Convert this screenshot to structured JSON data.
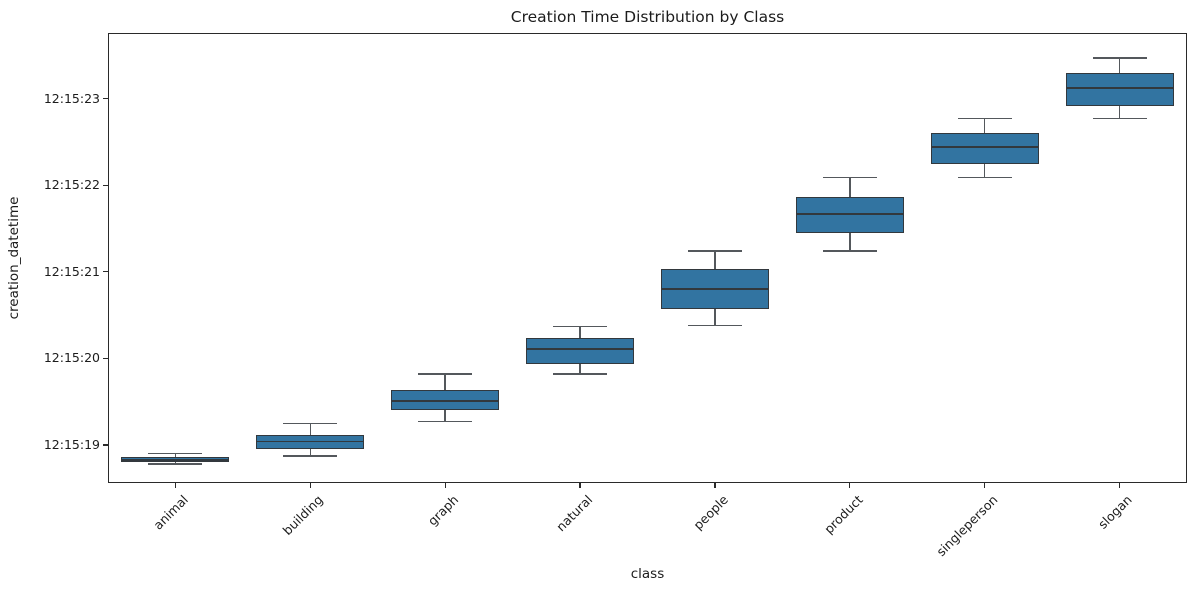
{
  "chart_data": {
    "type": "box",
    "title": "Creation Time Distribution by Class",
    "xlabel": "class",
    "ylabel": "creation_datetime",
    "categories": [
      "animal",
      "building",
      "graph",
      "natural",
      "people",
      "product",
      "singleperson",
      "slogan"
    ],
    "y_unit": "seconds after 12:15:00",
    "ylim": [
      18.56,
      23.76
    ],
    "yticks": [
      {
        "value": 19,
        "label": "12:15:19"
      },
      {
        "value": 20,
        "label": "12:15:20"
      },
      {
        "value": 21,
        "label": "12:15:21"
      },
      {
        "value": 22,
        "label": "12:15:22"
      },
      {
        "value": 23,
        "label": "12:15:23"
      }
    ],
    "series": [
      {
        "name": "animal",
        "whislo": 18.78,
        "q1": 18.8,
        "med": 18.83,
        "q3": 18.86,
        "whishi": 18.9
      },
      {
        "name": "building",
        "whislo": 18.87,
        "q1": 18.95,
        "med": 19.04,
        "q3": 19.12,
        "whishi": 19.25
      },
      {
        "name": "graph",
        "whislo": 19.27,
        "q1": 19.4,
        "med": 19.51,
        "q3": 19.64,
        "whishi": 19.82
      },
      {
        "name": "natural",
        "whislo": 19.82,
        "q1": 19.94,
        "med": 20.11,
        "q3": 20.24,
        "whishi": 20.37
      },
      {
        "name": "people",
        "whislo": 20.38,
        "q1": 20.57,
        "med": 20.8,
        "q3": 21.03,
        "whishi": 21.24
      },
      {
        "name": "product",
        "whislo": 21.24,
        "q1": 21.45,
        "med": 21.67,
        "q3": 21.87,
        "whishi": 22.09
      },
      {
        "name": "singleperson",
        "whislo": 22.09,
        "q1": 22.25,
        "med": 22.44,
        "q3": 22.6,
        "whishi": 22.77
      },
      {
        "name": "slogan",
        "whislo": 22.77,
        "q1": 22.92,
        "med": 23.12,
        "q3": 23.3,
        "whishi": 23.47
      }
    ],
    "legend": null,
    "grid": false,
    "colors": {
      "box_fill": "#3274a1",
      "box_edge": "#32383d",
      "median": "#32383d",
      "whisker": "#54585c",
      "spine": "#2a2a2a",
      "background": "#ffffff"
    }
  }
}
